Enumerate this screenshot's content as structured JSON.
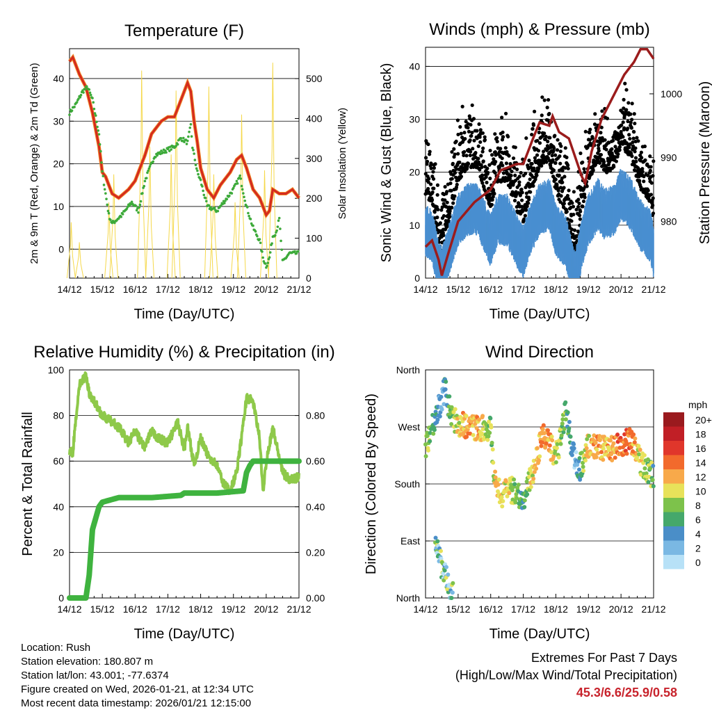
{
  "info": {
    "location": "Location: Rush",
    "elevation": "Station elevation: 180.807 m",
    "latlon": "Station lat/lon: 43.001; -77.6374",
    "created": "Figure created on Wed, 2026-01-21, at 12:34 UTC",
    "timestamp": "Most recent data timestamp: 2026/01/21 12:15:00"
  },
  "extremes": {
    "title": "Extremes For Past 7 Days",
    "subtitle": "(High/Low/Max Wind/Total Precipitation)",
    "values": "45.3/6.6/25.9/0.58"
  },
  "colors": {
    "temp": "#d42a1e",
    "temp9": "#f08a2a",
    "dew": "#3daa3a",
    "solar": "#f5d84a",
    "gust": "#000000",
    "wind": "#4a8fd0",
    "pressure": "#9b1c1c",
    "rh": "#8ec94a",
    "rain": "#3fb33f"
  },
  "chart_data": [
    {
      "type": "line",
      "title": "Temperature (F)",
      "xlabel": "Time (Day/UTC)",
      "ylabel": "2m & 9m T (Red, Orange) & 2m Td (Green)",
      "y2label": "Solar Insolation (Yellow)",
      "xticks": [
        "14/12",
        "15/12",
        "16/12",
        "17/12",
        "18/12",
        "19/12",
        "20/12",
        "21/12"
      ],
      "yticks": [
        "0",
        "10",
        "20",
        "30",
        "40"
      ],
      "y2ticks": [
        "0",
        "100",
        "200",
        "300",
        "400",
        "500"
      ],
      "ylim": [
        -6.8,
        47
      ],
      "y2lim": [
        0,
        575
      ],
      "series": [
        {
          "name": "2m T",
          "values": [
            [
              0,
              44
            ],
            [
              0.1,
              45
            ],
            [
              0.3,
              41
            ],
            [
              0.5,
              38
            ],
            [
              0.7,
              32
            ],
            [
              0.9,
              24
            ],
            [
              1.0,
              18
            ],
            [
              1.1,
              17
            ],
            [
              1.3,
              13
            ],
            [
              1.5,
              12
            ],
            [
              1.8,
              14
            ],
            [
              2.0,
              16
            ],
            [
              2.3,
              22
            ],
            [
              2.5,
              27
            ],
            [
              2.8,
              30
            ],
            [
              3.0,
              31
            ],
            [
              3.2,
              31
            ],
            [
              3.4,
              35
            ],
            [
              3.6,
              39
            ],
            [
              3.7,
              37
            ],
            [
              3.8,
              30
            ],
            [
              3.9,
              25
            ],
            [
              4.0,
              19
            ],
            [
              4.2,
              14
            ],
            [
              4.4,
              12
            ],
            [
              4.6,
              15
            ],
            [
              4.9,
              18
            ],
            [
              5.1,
              21
            ],
            [
              5.25,
              22
            ],
            [
              5.4,
              19
            ],
            [
              5.6,
              14
            ],
            [
              5.8,
              12
            ],
            [
              6.0,
              8
            ],
            [
              6.1,
              9
            ],
            [
              6.2,
              14
            ],
            [
              6.4,
              13
            ],
            [
              6.6,
              13
            ],
            [
              6.8,
              14
            ],
            [
              7.0,
              12
            ]
          ]
        },
        {
          "name": "2m Td",
          "values": [
            [
              0,
              32
            ],
            [
              0.2,
              34
            ],
            [
              0.4,
              37
            ],
            [
              0.55,
              38
            ],
            [
              0.7,
              35
            ],
            [
              0.9,
              27
            ],
            [
              1.0,
              18
            ],
            [
              1.1,
              13
            ],
            [
              1.2,
              8
            ],
            [
              1.3,
              6
            ],
            [
              1.6,
              8
            ],
            [
              1.9,
              11
            ],
            [
              2.1,
              9
            ],
            [
              2.3,
              16
            ],
            [
              2.6,
              22
            ],
            [
              2.9,
              23
            ],
            [
              3.2,
              24
            ],
            [
              3.4,
              26
            ],
            [
              3.6,
              25
            ],
            [
              3.7,
              29
            ],
            [
              3.75,
              24
            ],
            [
              3.9,
              18
            ],
            [
              4.0,
              16
            ],
            [
              4.2,
              10
            ],
            [
              4.5,
              9
            ],
            [
              4.8,
              12
            ],
            [
              5.0,
              14
            ],
            [
              5.2,
              17
            ],
            [
              5.4,
              10
            ],
            [
              5.6,
              5
            ],
            [
              5.8,
              2
            ],
            [
              5.9,
              -2
            ],
            [
              6.0,
              -4
            ],
            [
              6.1,
              -2
            ],
            [
              6.2,
              3
            ],
            [
              6.3,
              4
            ],
            [
              6.4,
              7
            ],
            [
              6.5,
              -3
            ],
            [
              6.7,
              -1
            ],
            [
              7.0,
              -1
            ]
          ]
        },
        {
          "name": "Solar",
          "peaks": [
            [
              0.05,
              140
            ],
            [
              0.3,
              90
            ],
            [
              1.2,
              190
            ],
            [
              1.35,
              260
            ],
            [
              2.2,
              520
            ],
            [
              2.45,
              330
            ],
            [
              3.25,
              470
            ],
            [
              3.1,
              310
            ],
            [
              4.25,
              480
            ],
            [
              4.4,
              260
            ],
            [
              5.25,
              410
            ],
            [
              5.05,
              190
            ],
            [
              6.2,
              540
            ],
            [
              5.95,
              270
            ]
          ]
        }
      ]
    },
    {
      "type": "scatter",
      "title": "Winds (mph) & Pressure (mb)",
      "xlabel": "Time (Day/UTC)",
      "ylabel": "Sonic Wind & Gust (Blue, Black)",
      "y2label": "Station Pressure (Maroon)",
      "xticks": [
        "14/12",
        "15/12",
        "16/12",
        "17/12",
        "18/12",
        "19/12",
        "20/12",
        "21/12"
      ],
      "yticks": [
        "0",
        "10",
        "20",
        "30",
        "40"
      ],
      "y2ticks": [
        "980",
        "990",
        "1000"
      ],
      "ylim": [
        0,
        43.6
      ],
      "y2lim": [
        971.1,
        1007.3
      ],
      "wind_trend": [
        [
          0,
          10
        ],
        [
          0.2,
          9
        ],
        [
          0.4,
          3
        ],
        [
          0.5,
          2
        ],
        [
          0.7,
          6
        ],
        [
          1.0,
          12
        ],
        [
          1.3,
          14
        ],
        [
          1.6,
          14
        ],
        [
          1.8,
          11
        ],
        [
          2.0,
          8
        ],
        [
          2.2,
          12
        ],
        [
          2.5,
          12
        ],
        [
          2.8,
          8
        ],
        [
          3.0,
          6
        ],
        [
          3.2,
          10
        ],
        [
          3.5,
          14
        ],
        [
          3.8,
          15
        ],
        [
          4.0,
          10
        ],
        [
          4.3,
          8
        ],
        [
          4.5,
          3
        ],
        [
          4.6,
          1
        ],
        [
          4.8,
          8
        ],
        [
          5.0,
          12
        ],
        [
          5.3,
          15
        ],
        [
          5.5,
          13
        ],
        [
          5.8,
          14
        ],
        [
          6.0,
          17
        ],
        [
          6.3,
          15
        ],
        [
          6.6,
          11
        ],
        [
          6.9,
          9
        ],
        [
          7.0,
          6
        ]
      ],
      "pressure": [
        [
          0,
          976
        ],
        [
          0.2,
          977
        ],
        [
          0.4,
          974
        ],
        [
          0.5,
          971.5
        ],
        [
          0.7,
          975
        ],
        [
          1.0,
          980
        ],
        [
          1.5,
          983
        ],
        [
          2.0,
          985
        ],
        [
          2.3,
          988
        ],
        [
          2.8,
          989
        ],
        [
          3.0,
          989
        ],
        [
          3.3,
          993
        ],
        [
          3.5,
          995.5
        ],
        [
          3.8,
          995
        ],
        [
          3.9,
          996.5
        ],
        [
          4.1,
          994
        ],
        [
          4.4,
          993
        ],
        [
          4.6,
          990
        ],
        [
          4.8,
          987
        ],
        [
          4.9,
          986
        ],
        [
          5.1,
          991
        ],
        [
          5.4,
          996
        ],
        [
          5.8,
          1000
        ],
        [
          6.1,
          1003
        ],
        [
          6.4,
          1005
        ],
        [
          6.6,
          1007
        ],
        [
          6.8,
          1007
        ],
        [
          7.0,
          1005.5
        ]
      ]
    },
    {
      "type": "line",
      "title": "Relative Humidity (%) & Precipitation (in)",
      "xlabel": "Time (Day/UTC)",
      "ylabel": "Percent & Total Rainfall",
      "xticks": [
        "14/12",
        "15/12",
        "16/12",
        "17/12",
        "18/12",
        "19/12",
        "20/12",
        "21/12"
      ],
      "yticks": [
        "0",
        "20",
        "40",
        "60",
        "80",
        "100"
      ],
      "y2ticks": [
        "0.00",
        "0.20",
        "0.40",
        "0.60",
        "0.80"
      ],
      "ylim": [
        0,
        100
      ],
      "y2lim": [
        0,
        1
      ],
      "series": [
        {
          "name": "RH",
          "values": [
            [
              0,
              64
            ],
            [
              0.1,
              64
            ],
            [
              0.2,
              80
            ],
            [
              0.3,
              93
            ],
            [
              0.4,
              96
            ],
            [
              0.5,
              97
            ],
            [
              0.6,
              90
            ],
            [
              0.8,
              85
            ],
            [
              1.0,
              80
            ],
            [
              1.2,
              78
            ],
            [
              1.5,
              75
            ],
            [
              1.8,
              68
            ],
            [
              2.0,
              73
            ],
            [
              2.3,
              66
            ],
            [
              2.5,
              73
            ],
            [
              2.7,
              70
            ],
            [
              3.0,
              68
            ],
            [
              3.3,
              77
            ],
            [
              3.5,
              65
            ],
            [
              3.6,
              75
            ],
            [
              3.8,
              58
            ],
            [
              4.0,
              70
            ],
            [
              4.2,
              63
            ],
            [
              4.5,
              58
            ],
            [
              4.7,
              50
            ],
            [
              4.9,
              47
            ],
            [
              5.1,
              55
            ],
            [
              5.3,
              76
            ],
            [
              5.4,
              88
            ],
            [
              5.6,
              86
            ],
            [
              5.8,
              70
            ],
            [
              5.9,
              46
            ],
            [
              6.0,
              60
            ],
            [
              6.2,
              75
            ],
            [
              6.3,
              68
            ],
            [
              6.5,
              55
            ],
            [
              6.7,
              52
            ],
            [
              7.0,
              53
            ]
          ]
        },
        {
          "name": "Rain",
          "values": [
            [
              0,
              0
            ],
            [
              0.5,
              0
            ],
            [
              0.6,
              0.1
            ],
            [
              0.7,
              0.3
            ],
            [
              0.8,
              0.35
            ],
            [
              0.9,
              0.4
            ],
            [
              1.0,
              0.42
            ],
            [
              1.5,
              0.44
            ],
            [
              2.5,
              0.44
            ],
            [
              3.4,
              0.45
            ],
            [
              3.5,
              0.46
            ],
            [
              4.5,
              0.46
            ],
            [
              5.3,
              0.47
            ],
            [
              5.4,
              0.55
            ],
            [
              5.5,
              0.58
            ],
            [
              5.6,
              0.6
            ],
            [
              7.0,
              0.6
            ]
          ]
        }
      ]
    },
    {
      "type": "scatter",
      "title": "Wind Direction",
      "xlabel": "Time (Day/UTC)",
      "ylabel": "Direction (Colored By Speed)",
      "xticks": [
        "14/12",
        "15/12",
        "16/12",
        "17/12",
        "18/12",
        "19/12",
        "20/12",
        "21/12"
      ],
      "yticks": [
        "North",
        "East",
        "South",
        "West",
        "North"
      ],
      "ylim": [
        0,
        360
      ],
      "dir_trend": [
        [
          0,
          240
        ],
        [
          0.2,
          270
        ],
        [
          0.4,
          300
        ],
        [
          0.6,
          330
        ],
        [
          0.8,
          285
        ],
        [
          1.0,
          275
        ],
        [
          1.5,
          270
        ],
        [
          2.0,
          268
        ],
        [
          2.1,
          200
        ],
        [
          2.3,
          160
        ],
        [
          2.5,
          170
        ],
        [
          2.8,
          170
        ],
        [
          3.0,
          150
        ],
        [
          3.3,
          200
        ],
        [
          3.6,
          260
        ],
        [
          4.0,
          225
        ],
        [
          4.2,
          260
        ],
        [
          4.3,
          300
        ],
        [
          4.5,
          230
        ],
        [
          4.7,
          200
        ],
        [
          5.0,
          240
        ],
        [
          5.5,
          235
        ],
        [
          6.0,
          240
        ],
        [
          6.3,
          250
        ],
        [
          6.6,
          215
        ],
        [
          7.0,
          190
        ]
      ],
      "north_cluster": [
        [
          0.35,
          80
        ],
        [
          0.55,
          40
        ],
        [
          0.8,
          10
        ]
      ],
      "legend": {
        "title": "mph",
        "labels": [
          "20+",
          "18",
          "16",
          "14",
          "12",
          "10",
          "8",
          "6",
          "4",
          "2",
          "0"
        ],
        "colors": [
          "#9a1a1e",
          "#c11f26",
          "#e0362b",
          "#f26a2c",
          "#f8a94a",
          "#e8e25a",
          "#7dc24b",
          "#45a86b",
          "#4a8ec8",
          "#7ab8e3",
          "#b7e1f7"
        ]
      }
    }
  ]
}
